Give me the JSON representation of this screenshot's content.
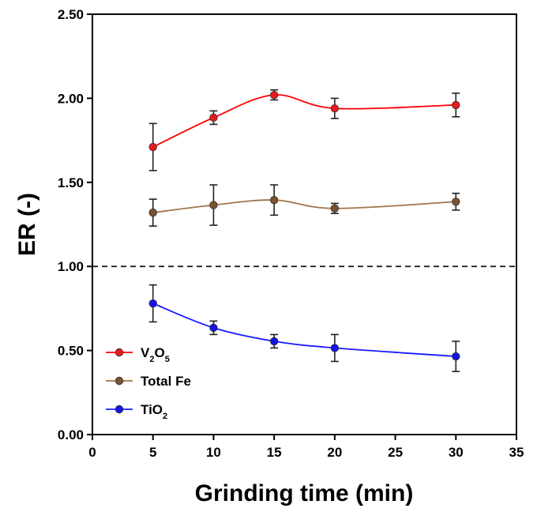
{
  "chart_data": {
    "type": "line",
    "title": "",
    "xlabel": "Grinding time (min)",
    "ylabel": "ER (-)",
    "xlim": [
      0,
      35
    ],
    "ylim": [
      0,
      2.5
    ],
    "xticks": [
      0,
      5,
      10,
      15,
      20,
      25,
      30,
      35
    ],
    "yticks": [
      0,
      0.5,
      1.0,
      1.5,
      2.0,
      2.5
    ],
    "xtick_labels": [
      "0",
      "5",
      "10",
      "15",
      "20",
      "25",
      "30",
      "35"
    ],
    "ytick_labels": [
      "0.00",
      "0.50",
      "1.00",
      "1.50",
      "2.00",
      "2.50"
    ],
    "reference_line": {
      "y": 1.0,
      "style": "dashed",
      "color": "#222222"
    },
    "legend_position": "bottom-left",
    "grid": false,
    "x": [
      5,
      10,
      15,
      20,
      30
    ],
    "series": [
      {
        "name": "V2O5",
        "label_base": "V",
        "label_sub1": "2",
        "label_mid": "O",
        "label_sub2": "5",
        "color": "#ff0000",
        "marker_color": "#e8191d",
        "values": [
          1.71,
          1.885,
          2.02,
          1.94,
          1.96
        ],
        "errors": [
          0.14,
          0.04,
          0.03,
          0.06,
          0.07
        ]
      },
      {
        "name": "Total Fe",
        "label_base": "Total Fe",
        "color": "#a0754a",
        "marker_color": "#7a5230",
        "values": [
          1.32,
          1.365,
          1.395,
          1.345,
          1.385
        ],
        "errors": [
          0.08,
          0.12,
          0.09,
          0.03,
          0.05
        ]
      },
      {
        "name": "TiO2",
        "label_base": "TiO",
        "label_sub1": "2",
        "color": "#1a1aff",
        "marker_color": "#1414e6",
        "values": [
          0.78,
          0.635,
          0.555,
          0.515,
          0.465
        ],
        "errors": [
          0.11,
          0.04,
          0.04,
          0.08,
          0.09
        ]
      }
    ]
  }
}
